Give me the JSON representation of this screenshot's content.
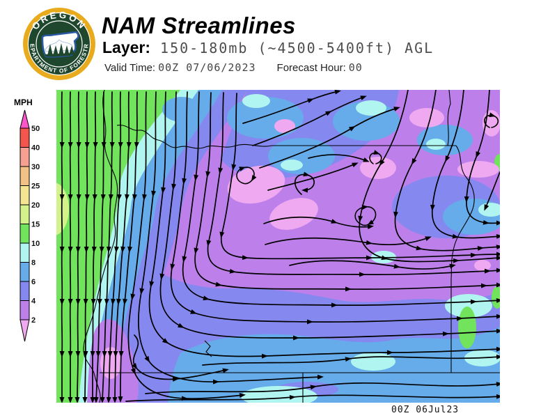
{
  "header": {
    "title": "NAM Streamlines",
    "layer_label": "Layer:",
    "layer_value": "150-180mb (~4500-5400ft) AGL",
    "valid_time_label": "Valid Time:",
    "valid_time_value": "00Z 07/06/2023",
    "forecast_hour_label": "Forecast Hour:",
    "forecast_hour_value": "00"
  },
  "logo": {
    "arc_top_text": "OREGON",
    "arc_bottom_text": "DEPARTMENT OF FORESTRY",
    "ring_color": "#E8AB1E",
    "field_color": "#1F472E",
    "outline_color": "#2B5AA6"
  },
  "colorbar": {
    "title": "MPH",
    "labels": [
      "50",
      "40",
      "30",
      "25",
      "20",
      "15",
      "10",
      "8",
      "6",
      "4",
      "2"
    ],
    "segment_colors_top_to_bottom": [
      "#F4554C",
      "#F5A091",
      "#F2C186",
      "#F5E492",
      "#D3F28C",
      "#71E35C",
      "#B0F5F0",
      "#66ACEA",
      "#8589EF",
      "#BD80EB"
    ],
    "above_max_color": "#F956C9",
    "below_min_color": "#EFA9F0"
  },
  "map": {
    "timestamp": "00Z 06Jul23"
  }
}
